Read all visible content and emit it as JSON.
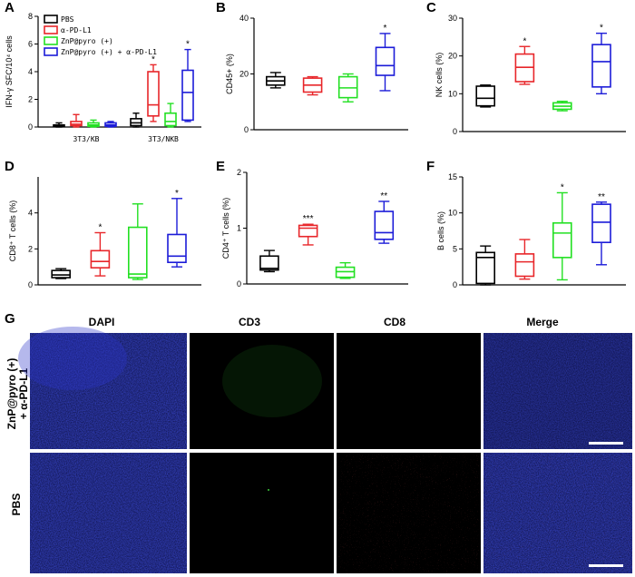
{
  "chart_data": [
    {
      "panel": "A",
      "type": "box",
      "ylabel": "IFN-γ SFC/10⁴ cells",
      "ylim": [
        0,
        8
      ],
      "yticks": [
        "0",
        "2",
        "4",
        "6",
        "8"
      ],
      "groups": [
        "3T3/KB",
        "3T3/NKB"
      ],
      "legend": [
        "PBS",
        "α-PD-L1",
        "ZnP@pyro (+)",
        "ZnP@pyro (+) + α-PD-L1"
      ],
      "series": [
        {
          "name": "PBS",
          "boxes": [
            [
              0.0,
              0.05,
              0.1,
              0.15,
              0.3
            ],
            [
              0.0,
              0.1,
              0.3,
              0.6,
              1.0
            ]
          ]
        },
        {
          "name": "α-PD-L1",
          "boxes": [
            [
              0.0,
              0.1,
              0.2,
              0.4,
              0.9
            ],
            [
              0.4,
              0.8,
              1.6,
              4.0,
              4.5
            ]
          ]
        },
        {
          "name": "ZnP@pyro (+)",
          "boxes": [
            [
              0.0,
              0.05,
              0.15,
              0.3,
              0.5
            ],
            [
              0.0,
              0.1,
              0.4,
              1.0,
              1.7
            ]
          ]
        },
        {
          "name": "ZnP@pyro (+) + α-PD-L1",
          "boxes": [
            [
              0.0,
              0.05,
              0.15,
              0.3,
              0.4
            ],
            [
              0.4,
              0.5,
              2.5,
              4.1,
              5.6
            ]
          ]
        }
      ],
      "annotations": [
        {
          "group": 1,
          "series": 1,
          "text": "*"
        },
        {
          "group": 1,
          "series": 3,
          "text": "*"
        }
      ]
    },
    {
      "panel": "B",
      "type": "box",
      "ylabel": "CD45+ (%)",
      "ylim": [
        0,
        40
      ],
      "yticks": [
        "0",
        "20",
        "40"
      ],
      "boxes": [
        [
          15.0,
          16.0,
          17.5,
          19.0,
          20.5
        ],
        [
          12.5,
          13.5,
          16.0,
          18.5,
          19.0
        ],
        [
          10.0,
          11.5,
          15.0,
          19.0,
          20.0
        ],
        [
          14.0,
          19.5,
          23.0,
          29.5,
          34.5
        ]
      ],
      "annotations": [
        {
          "index": 3,
          "text": "*"
        }
      ]
    },
    {
      "panel": "C",
      "type": "box",
      "ylabel": "NK cells (%)",
      "ylim": [
        0,
        30
      ],
      "yticks": [
        "0",
        "10",
        "20",
        "30"
      ],
      "boxes": [
        [
          6.5,
          6.8,
          8.8,
          12.0,
          12.3
        ],
        [
          12.5,
          13.2,
          17.0,
          20.5,
          22.5
        ],
        [
          5.5,
          5.9,
          6.7,
          7.6,
          8.0
        ],
        [
          10.0,
          11.8,
          18.5,
          23.0,
          26.0
        ]
      ],
      "annotations": [
        {
          "index": 1,
          "text": "*"
        },
        {
          "index": 3,
          "text": "*"
        }
      ]
    },
    {
      "panel": "D",
      "type": "box",
      "ylabel": "CD8⁺ T cells (%)",
      "ylim": [
        0,
        6
      ],
      "yticks": [
        "0",
        "2",
        "4"
      ],
      "boxes": [
        [
          0.35,
          0.4,
          0.55,
          0.8,
          0.9
        ],
        [
          0.5,
          0.95,
          1.3,
          1.9,
          2.9
        ],
        [
          0.3,
          0.4,
          0.6,
          3.2,
          4.5
        ],
        [
          1.0,
          1.25,
          1.6,
          2.8,
          4.8
        ]
      ],
      "annotations": [
        {
          "index": 1,
          "text": "*"
        },
        {
          "index": 3,
          "text": "*"
        }
      ]
    },
    {
      "panel": "E",
      "type": "box",
      "ylabel": "CD4⁺ T cells (%)",
      "ylim": [
        0,
        2
      ],
      "yticks": [
        "0",
        "1",
        "2"
      ],
      "boxes": [
        [
          0.22,
          0.25,
          0.28,
          0.5,
          0.6
        ],
        [
          0.7,
          0.85,
          1.0,
          1.05,
          1.07
        ],
        [
          0.1,
          0.12,
          0.22,
          0.3,
          0.38
        ],
        [
          0.73,
          0.8,
          0.92,
          1.3,
          1.48
        ]
      ],
      "annotations": [
        {
          "index": 1,
          "text": "***"
        },
        {
          "index": 3,
          "text": "**"
        }
      ]
    },
    {
      "panel": "F",
      "type": "box",
      "ylabel": "B cells (%)",
      "ylim": [
        0,
        15
      ],
      "yticks": [
        "0",
        "5",
        "10",
        "15"
      ],
      "boxes": [
        [
          0.0,
          0.2,
          3.8,
          4.5,
          5.4
        ],
        [
          0.8,
          1.2,
          3.2,
          4.3,
          6.3
        ],
        [
          0.7,
          3.8,
          7.2,
          8.6,
          12.8
        ],
        [
          2.8,
          5.9,
          8.7,
          11.2,
          11.5
        ]
      ],
      "annotations": [
        {
          "index": 2,
          "text": "*"
        },
        {
          "index": 3,
          "text": "**"
        }
      ]
    }
  ],
  "colors": {
    "PBS": "#000000",
    "aPDL1": "#e8262a",
    "ZnP": "#22e022",
    "combo": "#1c1cd8"
  },
  "panel_g": {
    "letter": "G",
    "columns": [
      "DAPI",
      "CD3",
      "CD8",
      "Merge"
    ],
    "rows": [
      {
        "line1": "ZnP@pyro (+)",
        "line2": "+ α-PD-L1"
      },
      {
        "line1": "PBS",
        "line2": ""
      }
    ]
  }
}
